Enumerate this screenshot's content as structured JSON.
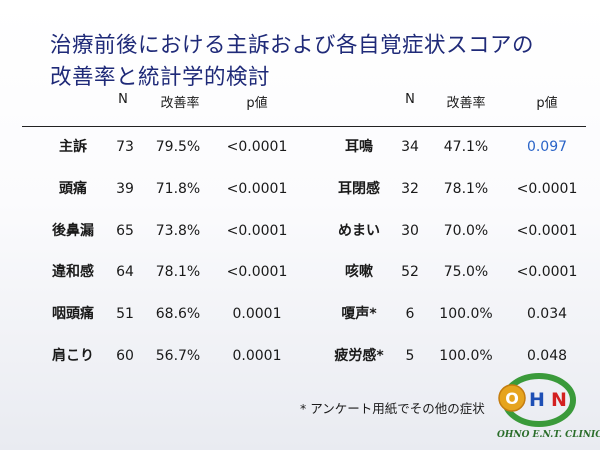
{
  "title": {
    "line1": "治療前後における主訴および各自覚症状スコアの",
    "line2": "改善率と統計学的検討"
  },
  "headers": {
    "left": {
      "n": "N",
      "rate": "改善率",
      "p": "p値"
    },
    "right": {
      "n": "N",
      "rate": "改善率",
      "p": "p値"
    }
  },
  "left_rows": [
    {
      "label": "主訴",
      "n": "73",
      "rate": "79.5%",
      "p": "<0.0001"
    },
    {
      "label": "頭痛",
      "n": "39",
      "rate": "71.8%",
      "p": "<0.0001"
    },
    {
      "label": "後鼻漏",
      "n": "65",
      "rate": "73.8%",
      "p": "<0.0001"
    },
    {
      "label": "違和感",
      "n": "64",
      "rate": "78.1%",
      "p": "<0.0001"
    },
    {
      "label": "咽頭痛",
      "n": "51",
      "rate": "68.6%",
      "p": "0.0001"
    },
    {
      "label": "肩こり",
      "n": "60",
      "rate": "56.7%",
      "p": "0.0001"
    }
  ],
  "right_rows": [
    {
      "label": "耳鳴",
      "n": "34",
      "rate": "47.1%",
      "p": "0.097"
    },
    {
      "label": "耳閉感",
      "n": "32",
      "rate": "78.1%",
      "p": "<0.0001"
    },
    {
      "label": "めまい",
      "n": "30",
      "rate": "70.0%",
      "p": "<0.0001"
    },
    {
      "label": "咳嗽",
      "n": "52",
      "rate": "75.0%",
      "p": "<0.0001"
    },
    {
      "label": "嗄声*",
      "n": "6",
      "rate": "100.0%",
      "p": "0.034"
    },
    {
      "label": "疲労感*",
      "n": "5",
      "rate": "100.0%",
      "p": "0.048"
    }
  ],
  "highlight_color": "#2a64c8",
  "footnote": "* アンケート用紙でその他の症状",
  "logo": {
    "letters": [
      "O",
      "H",
      "N"
    ],
    "caption": "OHNO E.N.T. CLINIC"
  }
}
